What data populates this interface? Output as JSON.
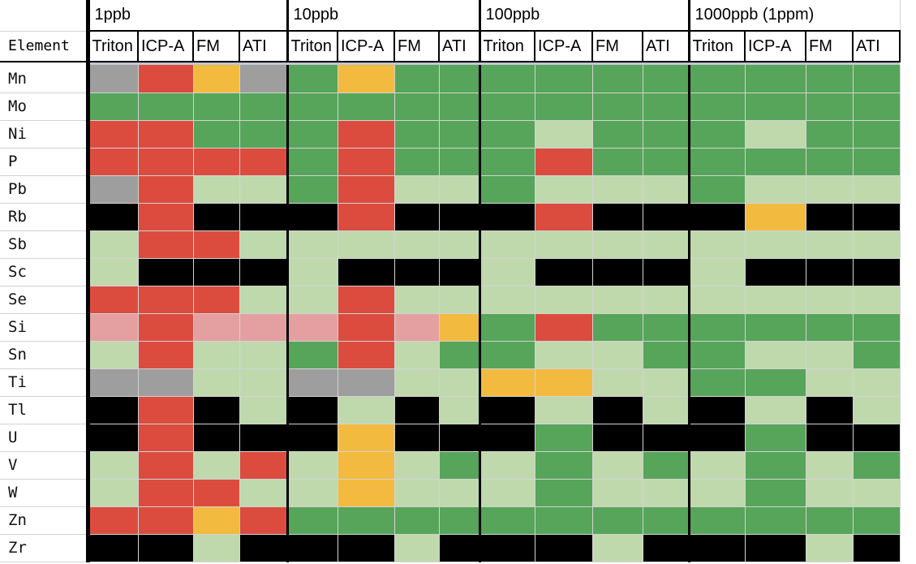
{
  "header": {
    "element_label": "Element",
    "concentrations": [
      {
        "label": "1ppb",
        "methods": [
          "Triton",
          "ICP-A",
          "FM",
          "ATI"
        ]
      },
      {
        "label": "10ppb",
        "methods": [
          "Triton",
          "ICP-A",
          "FM",
          "ATI"
        ]
      },
      {
        "label": "100ppb",
        "methods": [
          "Triton",
          "ICP-A",
          "FM",
          "ATI"
        ]
      },
      {
        "label": "1000ppb (1ppm)",
        "methods": [
          "Triton",
          "ICP-A",
          "FM",
          "ATI"
        ]
      }
    ]
  },
  "colors": {
    "G": "#57a55a",
    "L": "#bfd9ad",
    "R": "#db4c3f",
    "Y": "#f2bb40",
    "K": "#000000",
    "A": "#9e9e9e",
    "P": "#e4a0a0"
  },
  "legend_codes": {
    "G": "dark-green",
    "L": "light-green",
    "R": "red",
    "Y": "yellow",
    "K": "black",
    "A": "gray",
    "P": "pink"
  },
  "rows": [
    {
      "element": "Mn",
      "cells": [
        "A",
        "R",
        "Y",
        "A",
        "G",
        "Y",
        "G",
        "G",
        "G",
        "G",
        "G",
        "G",
        "G",
        "G",
        "G",
        "G"
      ]
    },
    {
      "element": "Mo",
      "cells": [
        "G",
        "G",
        "G",
        "G",
        "G",
        "G",
        "G",
        "G",
        "G",
        "G",
        "G",
        "G",
        "G",
        "G",
        "G",
        "G"
      ]
    },
    {
      "element": "Ni",
      "cells": [
        "R",
        "R",
        "G",
        "G",
        "G",
        "R",
        "G",
        "G",
        "G",
        "L",
        "G",
        "G",
        "G",
        "L",
        "G",
        "G"
      ]
    },
    {
      "element": "P",
      "cells": [
        "R",
        "R",
        "R",
        "R",
        "G",
        "R",
        "G",
        "G",
        "G",
        "R",
        "G",
        "G",
        "G",
        "G",
        "G",
        "G"
      ]
    },
    {
      "element": "Pb",
      "cells": [
        "A",
        "R",
        "L",
        "L",
        "G",
        "R",
        "L",
        "L",
        "G",
        "L",
        "L",
        "L",
        "G",
        "L",
        "L",
        "L"
      ]
    },
    {
      "element": "Rb",
      "cells": [
        "K",
        "R",
        "K",
        "K",
        "K",
        "R",
        "K",
        "K",
        "K",
        "R",
        "K",
        "K",
        "K",
        "Y",
        "K",
        "K"
      ]
    },
    {
      "element": "Sb",
      "cells": [
        "L",
        "R",
        "R",
        "L",
        "L",
        "L",
        "L",
        "L",
        "L",
        "L",
        "L",
        "L",
        "L",
        "L",
        "L",
        "L"
      ]
    },
    {
      "element": "Sc",
      "cells": [
        "L",
        "K",
        "K",
        "K",
        "L",
        "K",
        "K",
        "K",
        "L",
        "K",
        "K",
        "K",
        "L",
        "K",
        "K",
        "K"
      ]
    },
    {
      "element": "Se",
      "cells": [
        "R",
        "R",
        "R",
        "L",
        "L",
        "R",
        "L",
        "L",
        "L",
        "L",
        "L",
        "L",
        "L",
        "L",
        "L",
        "L"
      ]
    },
    {
      "element": "Si",
      "cells": [
        "P",
        "R",
        "P",
        "P",
        "P",
        "R",
        "P",
        "Y",
        "G",
        "R",
        "G",
        "G",
        "G",
        "G",
        "G",
        "G"
      ]
    },
    {
      "element": "Sn",
      "cells": [
        "L",
        "R",
        "L",
        "L",
        "G",
        "R",
        "L",
        "G",
        "G",
        "L",
        "L",
        "G",
        "G",
        "L",
        "L",
        "G"
      ]
    },
    {
      "element": "Ti",
      "cells": [
        "A",
        "A",
        "L",
        "L",
        "A",
        "A",
        "L",
        "L",
        "Y",
        "Y",
        "L",
        "L",
        "G",
        "G",
        "L",
        "L"
      ]
    },
    {
      "element": "Tl",
      "cells": [
        "K",
        "R",
        "K",
        "L",
        "K",
        "L",
        "K",
        "L",
        "K",
        "L",
        "K",
        "L",
        "K",
        "L",
        "K",
        "L"
      ]
    },
    {
      "element": "U",
      "cells": [
        "K",
        "R",
        "K",
        "K",
        "K",
        "Y",
        "K",
        "K",
        "K",
        "G",
        "K",
        "K",
        "K",
        "G",
        "K",
        "K"
      ]
    },
    {
      "element": "V",
      "cells": [
        "L",
        "R",
        "L",
        "R",
        "L",
        "Y",
        "L",
        "G",
        "L",
        "G",
        "L",
        "G",
        "L",
        "G",
        "L",
        "G"
      ]
    },
    {
      "element": "W",
      "cells": [
        "L",
        "R",
        "R",
        "L",
        "L",
        "Y",
        "L",
        "L",
        "L",
        "G",
        "L",
        "L",
        "L",
        "G",
        "L",
        "L"
      ]
    },
    {
      "element": "Zn",
      "cells": [
        "R",
        "R",
        "Y",
        "R",
        "G",
        "G",
        "G",
        "G",
        "G",
        "G",
        "G",
        "G",
        "G",
        "G",
        "G",
        "G"
      ]
    },
    {
      "element": "Zr",
      "cells": [
        "K",
        "K",
        "L",
        "K",
        "K",
        "K",
        "L",
        "K",
        "K",
        "K",
        "L",
        "K",
        "K",
        "K",
        "L",
        "K"
      ]
    }
  ]
}
